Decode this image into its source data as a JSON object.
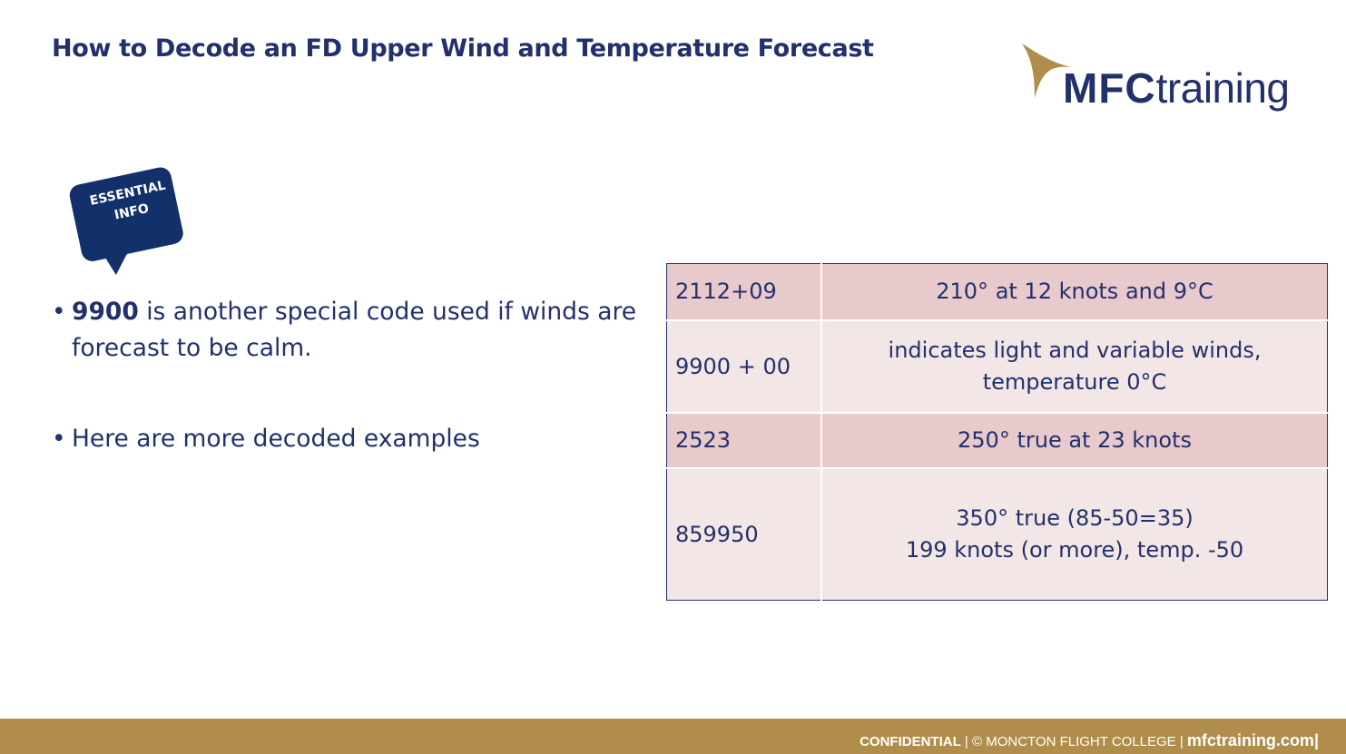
{
  "slide": {
    "title": "How to Decode an FD Upper Wind and Temperature Forecast"
  },
  "logo": {
    "brand": "MFC",
    "suffix": "training",
    "icon": "gold-swoosh-icon",
    "colors": {
      "navy": "#22306b",
      "gold": "#b08d4a"
    }
  },
  "badge": {
    "line1": "ESSENTIAL",
    "line2": "INFO",
    "icon": "speech-bubble-icon",
    "color": "#12306a"
  },
  "bullets": [
    {
      "bold": "9900",
      "text": " is another special code used if winds are forecast to be calm."
    },
    {
      "bold": "",
      "text": "Here are more decoded examples"
    }
  ],
  "table": {
    "rows": [
      {
        "code": "2112+09",
        "lines": [
          "210° at 12 knots and 9°C"
        ]
      },
      {
        "code": "9900 + 00",
        "lines": [
          "indicates light and variable winds,",
          "temperature 0°C"
        ]
      },
      {
        "code": "2523",
        "lines": [
          "250° true at 23 knots"
        ]
      },
      {
        "code": "859950",
        "lines": [
          "350° true (85-50=35)",
          "199 knots (or more), temp. -50"
        ]
      }
    ],
    "colors": {
      "dark_row": "#e8cacc",
      "light_row": "#f3e6e6",
      "border": "#22306b"
    }
  },
  "footer": {
    "confidential": "CONFIDENTIAL",
    "separator": " | ",
    "copyright": "© MONCTON FLIGHT COLLEGE",
    "site": "mfctraining.com",
    "trailing": "|",
    "color": "#b08d4a"
  }
}
